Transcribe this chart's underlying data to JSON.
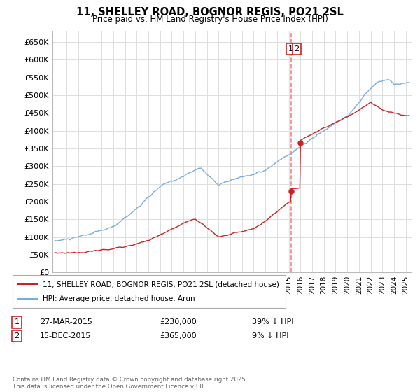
{
  "title": "11, SHELLEY ROAD, BOGNOR REGIS, PO21 2SL",
  "subtitle": "Price paid vs. HM Land Registry's House Price Index (HPI)",
  "ylabel_ticks": [
    "£0",
    "£50K",
    "£100K",
    "£150K",
    "£200K",
    "£250K",
    "£300K",
    "£350K",
    "£400K",
    "£450K",
    "£500K",
    "£550K",
    "£600K",
    "£650K"
  ],
  "ytick_values": [
    0,
    50000,
    100000,
    150000,
    200000,
    250000,
    300000,
    350000,
    400000,
    450000,
    500000,
    550000,
    600000,
    650000
  ],
  "hpi_color": "#7aadde",
  "price_color": "#cc2222",
  "dashed_line_color": "#ee8888",
  "shade_color": "#e8f0f8",
  "background_color": "#ffffff",
  "grid_color": "#dddddd",
  "transaction1": {
    "label": "1",
    "date": "27-MAR-2015",
    "price": 230000,
    "note": "39% ↓ HPI",
    "year": 2015.23
  },
  "transaction2": {
    "label": "2",
    "date": "15-DEC-2015",
    "price": 365000,
    "note": "9% ↓ HPI",
    "year": 2015.96
  },
  "legend_label1": "11, SHELLEY ROAD, BOGNOR REGIS, PO21 2SL (detached house)",
  "legend_label2": "HPI: Average price, detached house, Arun",
  "footer": "Contains HM Land Registry data © Crown copyright and database right 2025.\nThis data is licensed under the Open Government Licence v3.0.",
  "xmin": 1994.8,
  "xmax": 2025.5,
  "ymin": 0,
  "ymax": 680000
}
